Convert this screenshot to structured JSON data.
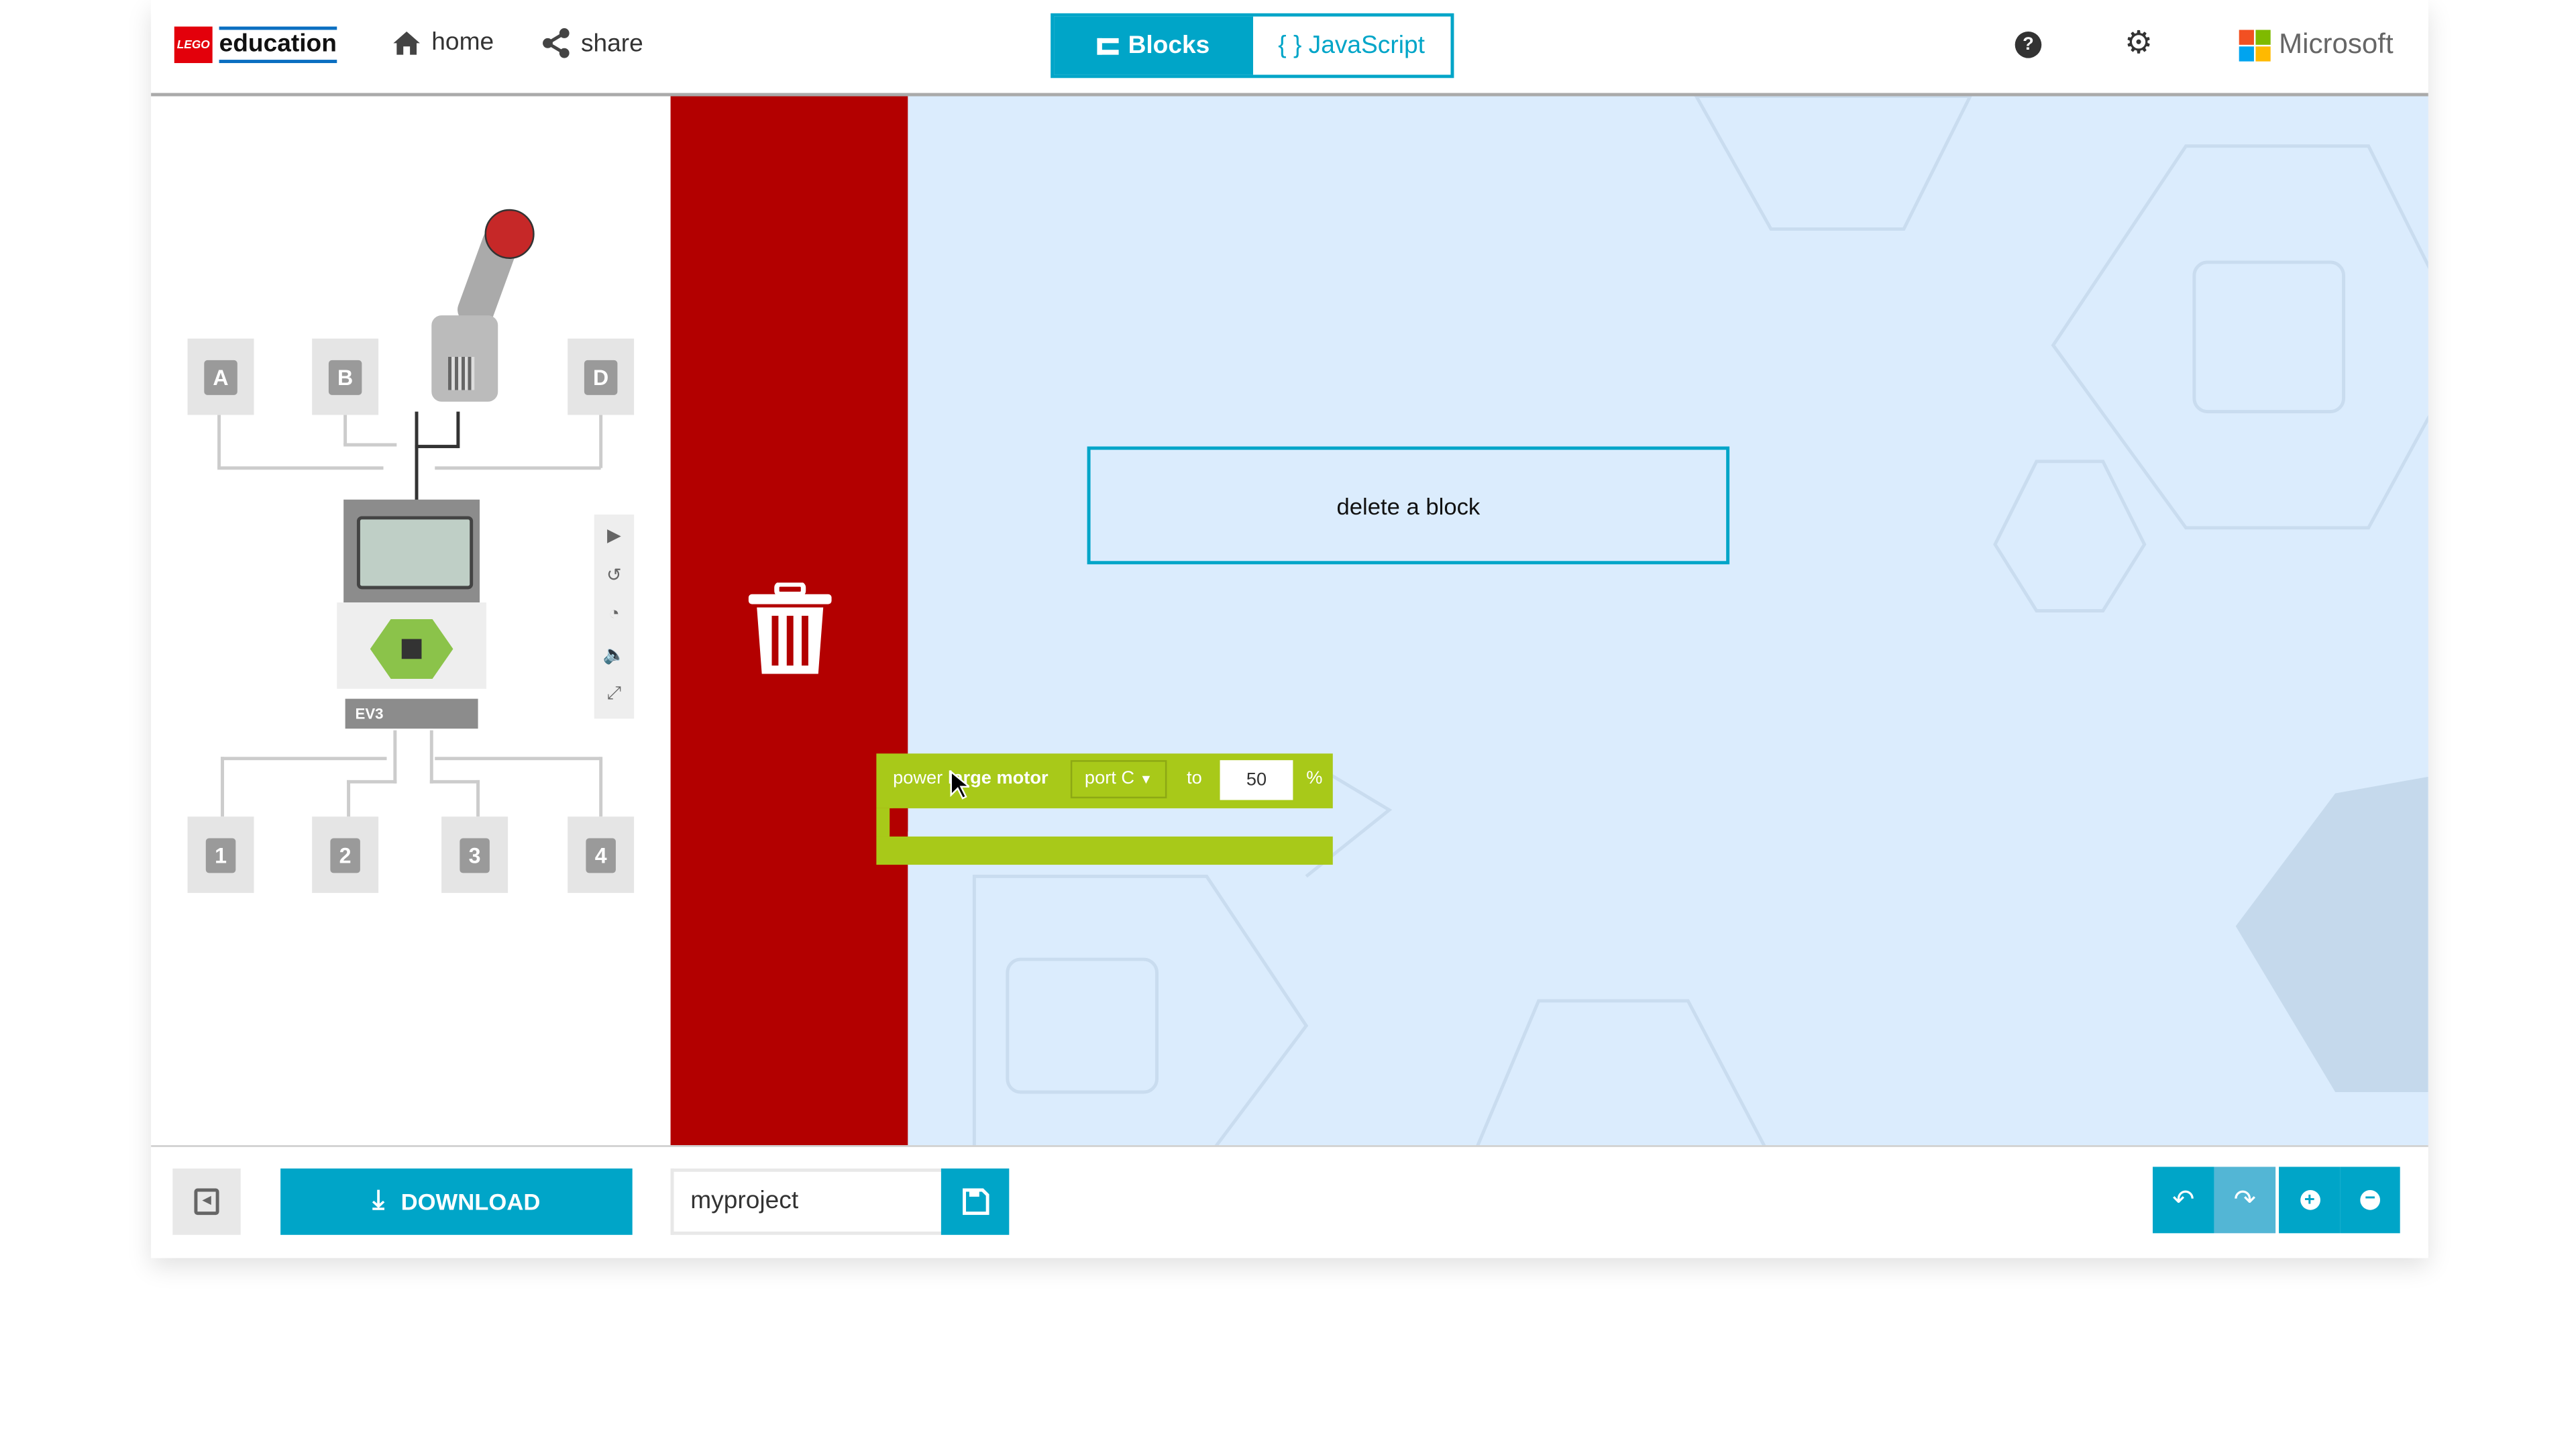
{
  "header": {
    "brand": "education",
    "home": "home",
    "share": "share",
    "microsoft": "Microsoft",
    "tabs": [
      {
        "label": "Blocks",
        "active": true
      },
      {
        "label": "{ } JavaScript",
        "active": false
      }
    ]
  },
  "simulator": {
    "input_ports": [
      "A",
      "B",
      "D"
    ],
    "sensor_ports": [
      "1",
      "2",
      "3",
      "4"
    ],
    "brick_label": "EV3"
  },
  "workspace": {
    "tooltip": "delete a block",
    "block": {
      "text_normal": "power",
      "text_bold": "large motor",
      "port_dropdown": "port C",
      "to_label": "to",
      "value": "50",
      "unit": "%",
      "color": "#a8c919"
    }
  },
  "footer": {
    "download": "DOWNLOAD",
    "project_name": "myproject"
  },
  "colors": {
    "accent": "#00a5c8",
    "trash": "#b30000",
    "workspace": "#dbecfd"
  }
}
